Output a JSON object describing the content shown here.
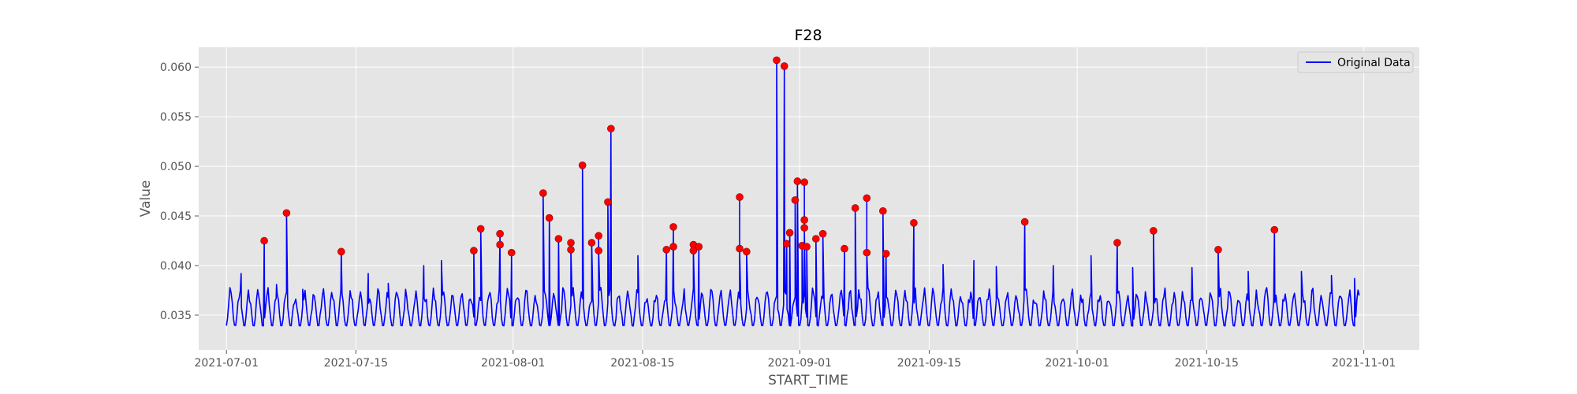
{
  "chart_data": {
    "type": "line",
    "title": "F28",
    "xlabel": "START_TIME",
    "ylabel": "Value",
    "x_ticks": [
      "2021-07-01",
      "2021-07-15",
      "2021-08-01",
      "2021-08-15",
      "2021-09-01",
      "2021-09-15",
      "2021-10-01",
      "2021-10-15",
      "2021-11-01"
    ],
    "y_ticks": [
      "0.035",
      "0.040",
      "0.045",
      "0.050",
      "0.055",
      "0.060"
    ],
    "xlim": [
      "2021-06-28",
      "2021-11-07"
    ],
    "ylim": [
      0.0315,
      0.062
    ],
    "grid": true,
    "background_color": "#e5e5e5",
    "legend_position": "top-right",
    "series": [
      {
        "name": "Original Data",
        "color": "#0000ff",
        "baseline_min": 0.033,
        "baseline_max": 0.0385,
        "spikes": [
          [
            "2021-07-02 14:00",
            0.0392
          ],
          [
            "2021-07-05 02:00",
            0.0425
          ],
          [
            "2021-07-06 10:00",
            0.0381
          ],
          [
            "2021-07-07 12:00",
            0.0453
          ],
          [
            "2021-07-09 06:00",
            0.0376
          ],
          [
            "2021-07-13 10:00",
            0.0414
          ],
          [
            "2021-07-16 08:00",
            0.0392
          ],
          [
            "2021-07-18 12:00",
            0.0382
          ],
          [
            "2021-07-22 08:00",
            0.04
          ],
          [
            "2021-07-24 06:00",
            0.0405
          ],
          [
            "2021-07-27 18:00",
            0.0415
          ],
          [
            "2021-07-28 12:00",
            0.0437
          ],
          [
            "2021-07-30 14:00",
            0.0432
          ],
          [
            "2021-07-30 14:00",
            0.0421
          ],
          [
            "2021-07-31 20:00",
            0.0413
          ],
          [
            "2021-08-04 06:00",
            0.0473
          ],
          [
            "2021-08-04 22:00",
            0.0448
          ],
          [
            "2021-08-05 22:00",
            0.0427
          ],
          [
            "2021-08-07 06:00",
            0.0423
          ],
          [
            "2021-08-07 06:00",
            0.0416
          ],
          [
            "2021-08-08 12:00",
            0.0501
          ],
          [
            "2021-08-09 12:00",
            0.0423
          ],
          [
            "2021-08-10 06:00",
            0.043
          ],
          [
            "2021-08-10 06:00",
            0.0415
          ],
          [
            "2021-08-11 06:00",
            0.0464
          ],
          [
            "2021-08-11 14:00",
            0.0538
          ],
          [
            "2021-08-14 12:00",
            0.041
          ],
          [
            "2021-08-17 14:00",
            0.0416
          ],
          [
            "2021-08-18 08:00",
            0.0439
          ],
          [
            "2021-08-18 08:00",
            0.0419
          ],
          [
            "2021-08-20 12:00",
            0.0421
          ],
          [
            "2021-08-20 12:00",
            0.0415
          ],
          [
            "2021-08-21 02:00",
            0.0419
          ],
          [
            "2021-08-25 12:00",
            0.0469
          ],
          [
            "2021-08-25 12:00",
            0.0417
          ],
          [
            "2021-08-26 06:00",
            0.0414
          ],
          [
            "2021-08-29 12:00",
            0.0607
          ],
          [
            "2021-08-30 08:00",
            0.0601
          ],
          [
            "2021-08-30 14:00",
            0.0422
          ],
          [
            "2021-08-30 22:00",
            0.0433
          ],
          [
            "2021-08-31 12:00",
            0.0466
          ],
          [
            "2021-08-31 18:00",
            0.0485
          ],
          [
            "2021-09-01 06:00",
            0.042
          ],
          [
            "2021-09-01 12:00",
            0.0484
          ],
          [
            "2021-09-01 12:00",
            0.0446
          ],
          [
            "2021-09-01 12:00",
            0.0438
          ],
          [
            "2021-09-01 18:00",
            0.0419
          ],
          [
            "2021-09-02 18:00",
            0.0427
          ],
          [
            "2021-09-03 12:00",
            0.0432
          ],
          [
            "2021-09-05 20:00",
            0.0417
          ],
          [
            "2021-09-07 00:00",
            0.0458
          ],
          [
            "2021-09-08 06:00",
            0.0468
          ],
          [
            "2021-09-08 06:00",
            0.0413
          ],
          [
            "2021-09-10 00:00",
            0.0455
          ],
          [
            "2021-09-10 08:00",
            0.0412
          ],
          [
            "2021-09-13 08:00",
            0.0443
          ],
          [
            "2021-09-16 12:00",
            0.0401
          ],
          [
            "2021-09-19 20:00",
            0.0405
          ],
          [
            "2021-09-22 06:00",
            0.0399
          ],
          [
            "2021-09-25 08:00",
            0.0444
          ],
          [
            "2021-09-28 10:00",
            0.04
          ],
          [
            "2021-10-02 12:00",
            0.041
          ],
          [
            "2021-10-05 08:00",
            0.0423
          ],
          [
            "2021-10-07 00:00",
            0.0398
          ],
          [
            "2021-10-09 06:00",
            0.0435
          ],
          [
            "2021-10-13 10:00",
            0.0398
          ],
          [
            "2021-10-16 06:00",
            0.0416
          ],
          [
            "2021-10-19 12:00",
            0.0394
          ],
          [
            "2021-10-22 08:00",
            0.0436
          ],
          [
            "2021-10-25 06:00",
            0.0394
          ],
          [
            "2021-10-28 12:00",
            0.039
          ],
          [
            "2021-10-31 00:00",
            0.0387
          ]
        ]
      }
    ],
    "highlighted_points": {
      "color": "#ff0000",
      "points": [
        [
          "2021-07-05 02:00",
          0.0425
        ],
        [
          "2021-07-07 12:00",
          0.0453
        ],
        [
          "2021-07-13 10:00",
          0.0414
        ],
        [
          "2021-07-27 18:00",
          0.0415
        ],
        [
          "2021-07-28 12:00",
          0.0437
        ],
        [
          "2021-07-30 14:00",
          0.0432
        ],
        [
          "2021-07-30 14:00",
          0.0421
        ],
        [
          "2021-07-31 20:00",
          0.0413
        ],
        [
          "2021-08-04 06:00",
          0.0473
        ],
        [
          "2021-08-04 22:00",
          0.0448
        ],
        [
          "2021-08-05 22:00",
          0.0427
        ],
        [
          "2021-08-07 06:00",
          0.0423
        ],
        [
          "2021-08-07 06:00",
          0.0416
        ],
        [
          "2021-08-08 12:00",
          0.0501
        ],
        [
          "2021-08-09 12:00",
          0.0423
        ],
        [
          "2021-08-10 06:00",
          0.043
        ],
        [
          "2021-08-10 06:00",
          0.0415
        ],
        [
          "2021-08-11 06:00",
          0.0464
        ],
        [
          "2021-08-11 14:00",
          0.0538
        ],
        [
          "2021-08-17 14:00",
          0.0416
        ],
        [
          "2021-08-18 08:00",
          0.0439
        ],
        [
          "2021-08-18 08:00",
          0.0419
        ],
        [
          "2021-08-20 12:00",
          0.0421
        ],
        [
          "2021-08-20 12:00",
          0.0415
        ],
        [
          "2021-08-21 02:00",
          0.0419
        ],
        [
          "2021-08-25 12:00",
          0.0469
        ],
        [
          "2021-08-25 12:00",
          0.0417
        ],
        [
          "2021-08-26 06:00",
          0.0414
        ],
        [
          "2021-08-29 12:00",
          0.0607
        ],
        [
          "2021-08-30 08:00",
          0.0601
        ],
        [
          "2021-08-30 14:00",
          0.0422
        ],
        [
          "2021-08-30 22:00",
          0.0433
        ],
        [
          "2021-08-31 12:00",
          0.0466
        ],
        [
          "2021-08-31 18:00",
          0.0485
        ],
        [
          "2021-09-01 06:00",
          0.042
        ],
        [
          "2021-09-01 12:00",
          0.0484
        ],
        [
          "2021-09-01 12:00",
          0.0446
        ],
        [
          "2021-09-01 12:00",
          0.0438
        ],
        [
          "2021-09-01 18:00",
          0.0419
        ],
        [
          "2021-09-02 18:00",
          0.0427
        ],
        [
          "2021-09-03 12:00",
          0.0432
        ],
        [
          "2021-09-05 20:00",
          0.0417
        ],
        [
          "2021-09-07 00:00",
          0.0458
        ],
        [
          "2021-09-08 06:00",
          0.0468
        ],
        [
          "2021-09-08 06:00",
          0.0413
        ],
        [
          "2021-09-10 00:00",
          0.0455
        ],
        [
          "2021-09-10 08:00",
          0.0412
        ],
        [
          "2021-09-13 08:00",
          0.0443
        ],
        [
          "2021-09-25 08:00",
          0.0444
        ],
        [
          "2021-10-05 08:00",
          0.0423
        ],
        [
          "2021-10-09 06:00",
          0.0435
        ],
        [
          "2021-10-16 06:00",
          0.0416
        ],
        [
          "2021-10-22 08:00",
          0.0436
        ]
      ]
    }
  }
}
